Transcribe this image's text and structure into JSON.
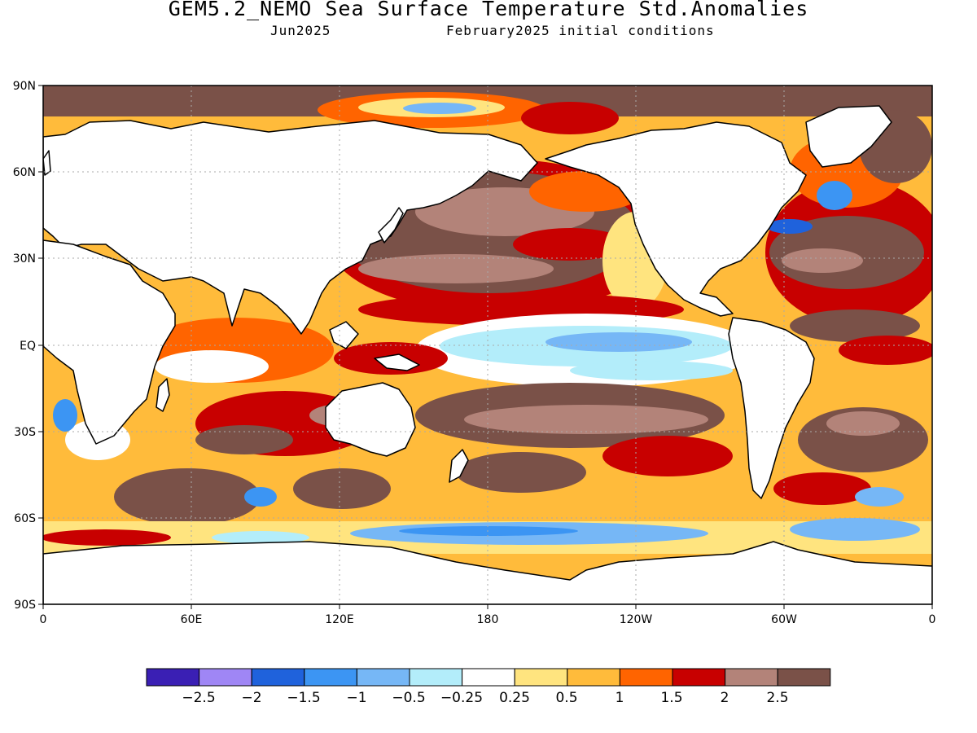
{
  "header": {
    "title": "GEM5.2_NEMO Sea Surface Temperature Std.Anomalies",
    "valid_month": "Jun2025",
    "init_label": "February2025 initial conditions"
  },
  "axes": {
    "lat_labels": [
      "90N",
      "60N",
      "30N",
      "EQ",
      "30S",
      "60S",
      "90S"
    ],
    "lon_labels": [
      "0",
      "60E",
      "120E",
      "180",
      "120W",
      "60W",
      "0"
    ]
  },
  "colorbar": {
    "colors": [
      "#3a1fb4",
      "#9f86f5",
      "#1f62dc",
      "#3c95f3",
      "#76b7f6",
      "#b3edfa",
      "#ffffff",
      "#ffe47f",
      "#ffbb3b",
      "#ff6400",
      "#c80000",
      "#b38379",
      "#7a5148"
    ],
    "labels": [
      "−2.5",
      "−2",
      "−1.5",
      "−1",
      "−0.5",
      "−0.25",
      "0.25",
      "0.5",
      "1",
      "1.5",
      "2",
      "2.5"
    ]
  },
  "land_color": "#ffffff",
  "coastline_color": "#000000"
}
